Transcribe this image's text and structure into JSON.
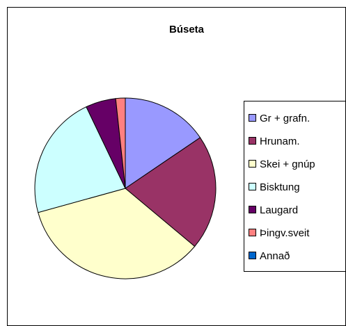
{
  "chart_data": {
    "type": "pie",
    "title": "Búseta",
    "categories": [
      "Gr + grafn.",
      "Hrunam.",
      "Skei + gnúp",
      "Bisktung",
      "Laugard",
      "Þingv.sveit",
      "Annað"
    ],
    "values": [
      15.5,
      20.6,
      34.6,
      22.2,
      5.4,
      1.7,
      0
    ],
    "colors": [
      "#9999ff",
      "#993366",
      "#ffffcc",
      "#ccffff",
      "#660066",
      "#ff8080",
      "#0066cc"
    ],
    "legend": "right"
  }
}
